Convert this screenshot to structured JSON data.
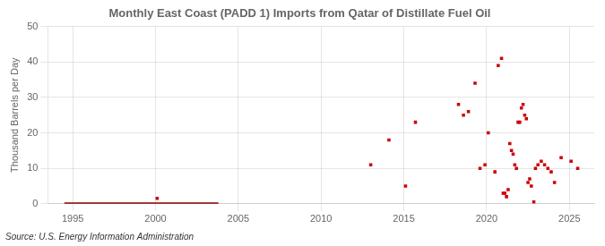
{
  "chart_data": {
    "type": "scatter",
    "title": "Monthly East Coast (PADD 1) Imports from Qatar of Distillate Fuel Oil",
    "y_label": "Thousand Barrels per Day",
    "source": "Source: U.S. Energy Information Administration",
    "xlim": [
      1993.5,
      2026.5
    ],
    "ylim": [
      0,
      50
    ],
    "xticks": [
      1995,
      2000,
      2005,
      2010,
      2015,
      2020,
      2025
    ],
    "yticks": [
      0,
      10,
      20,
      30,
      40,
      50
    ],
    "grid": true,
    "series": [
      {
        "type": "line",
        "color": "#8b0000",
        "line_style": "solid",
        "x": [
          1994.5,
          2003.8
        ],
        "values": [
          0,
          0
        ]
      },
      {
        "type": "scatter",
        "color": "#cc0000",
        "marker": "square",
        "x": [
          2000.1,
          2013.0,
          2014.1,
          2015.1,
          2015.7,
          2018.3,
          2018.6,
          2018.9,
          2019.3,
          2019.6,
          2019.9,
          2020.1,
          2020.5,
          2020.7,
          2020.9,
          2021.0,
          2021.1,
          2021.2,
          2021.3,
          2021.4,
          2021.5,
          2021.6,
          2021.7,
          2021.8,
          2021.9,
          2022.0,
          2022.1,
          2022.2,
          2022.3,
          2022.4,
          2022.5,
          2022.6,
          2022.7,
          2022.85,
          2022.95,
          2023.1,
          2023.3,
          2023.5,
          2023.7,
          2023.9,
          2024.1,
          2024.5,
          2025.1,
          2025.5
        ],
        "values": [
          1.5,
          11,
          18,
          5,
          23,
          28,
          25,
          26,
          34,
          10,
          11,
          20,
          9,
          39,
          41,
          3,
          3,
          2,
          4,
          17,
          15,
          14,
          11,
          10,
          23,
          23,
          27,
          28,
          25,
          24,
          6,
          7,
          5,
          0.5,
          10,
          11,
          12,
          11,
          10,
          9,
          6,
          13,
          12,
          10
        ]
      }
    ]
  }
}
